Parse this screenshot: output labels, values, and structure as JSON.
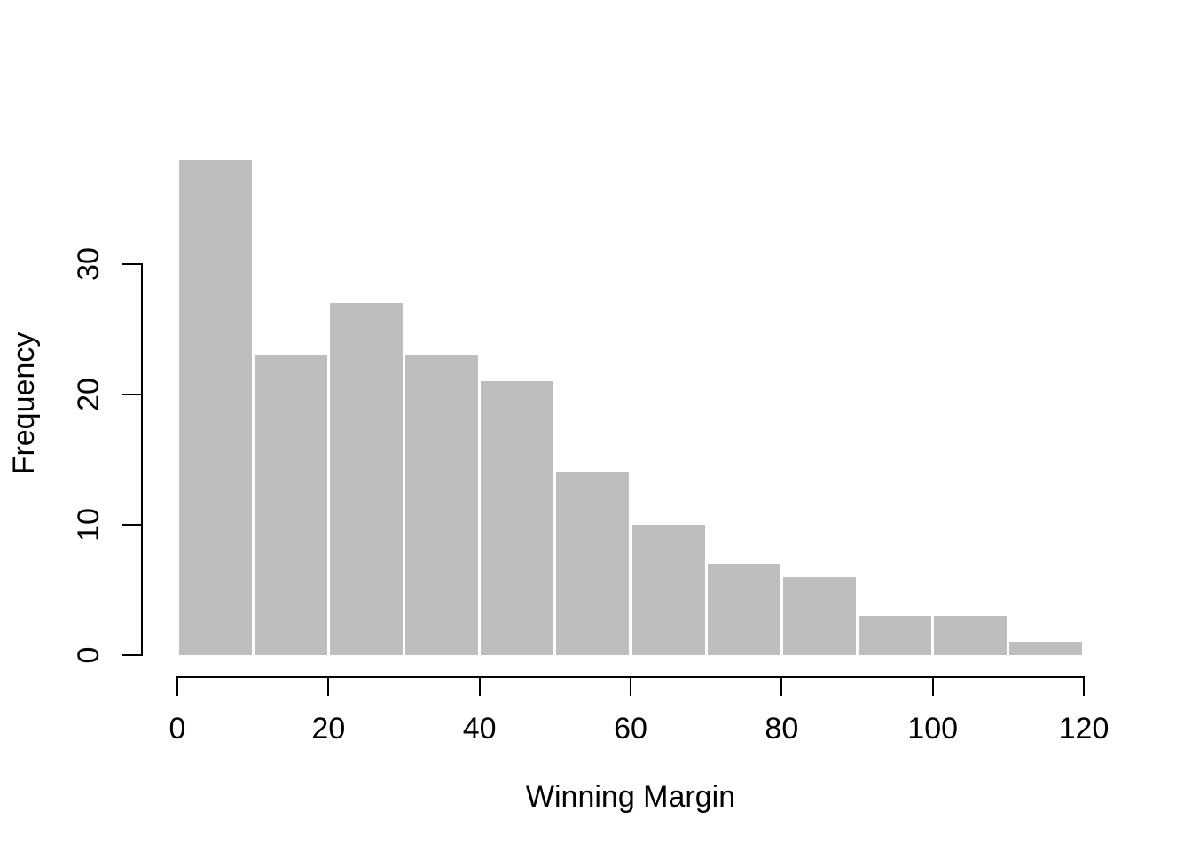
{
  "chart_data": {
    "type": "bar",
    "subtype": "histogram",
    "title": "",
    "xlabel": "Winning Margin",
    "ylabel": "Frequency",
    "bin_width": 10,
    "bin_edges": [
      0,
      10,
      20,
      30,
      40,
      50,
      60,
      70,
      80,
      90,
      100,
      110,
      120
    ],
    "categories": [
      "0-10",
      "10-20",
      "20-30",
      "30-40",
      "40-50",
      "50-60",
      "60-70",
      "70-80",
      "80-90",
      "90-100",
      "100-110",
      "110-120"
    ],
    "values": [
      38,
      23,
      27,
      23,
      21,
      14,
      10,
      7,
      6,
      3,
      3,
      1
    ],
    "x_ticks": [
      0,
      20,
      40,
      60,
      80,
      100,
      120
    ],
    "y_ticks": [
      0,
      10,
      20,
      30
    ],
    "xlim": [
      0,
      120
    ],
    "ylim": [
      0,
      30
    ],
    "grid": false,
    "legend": "none",
    "bar_fill": "#bebebe",
    "bar_gap_color": "#ffffff",
    "axis_color": "#000000",
    "text_color": "#000000",
    "background": "#ffffff"
  }
}
